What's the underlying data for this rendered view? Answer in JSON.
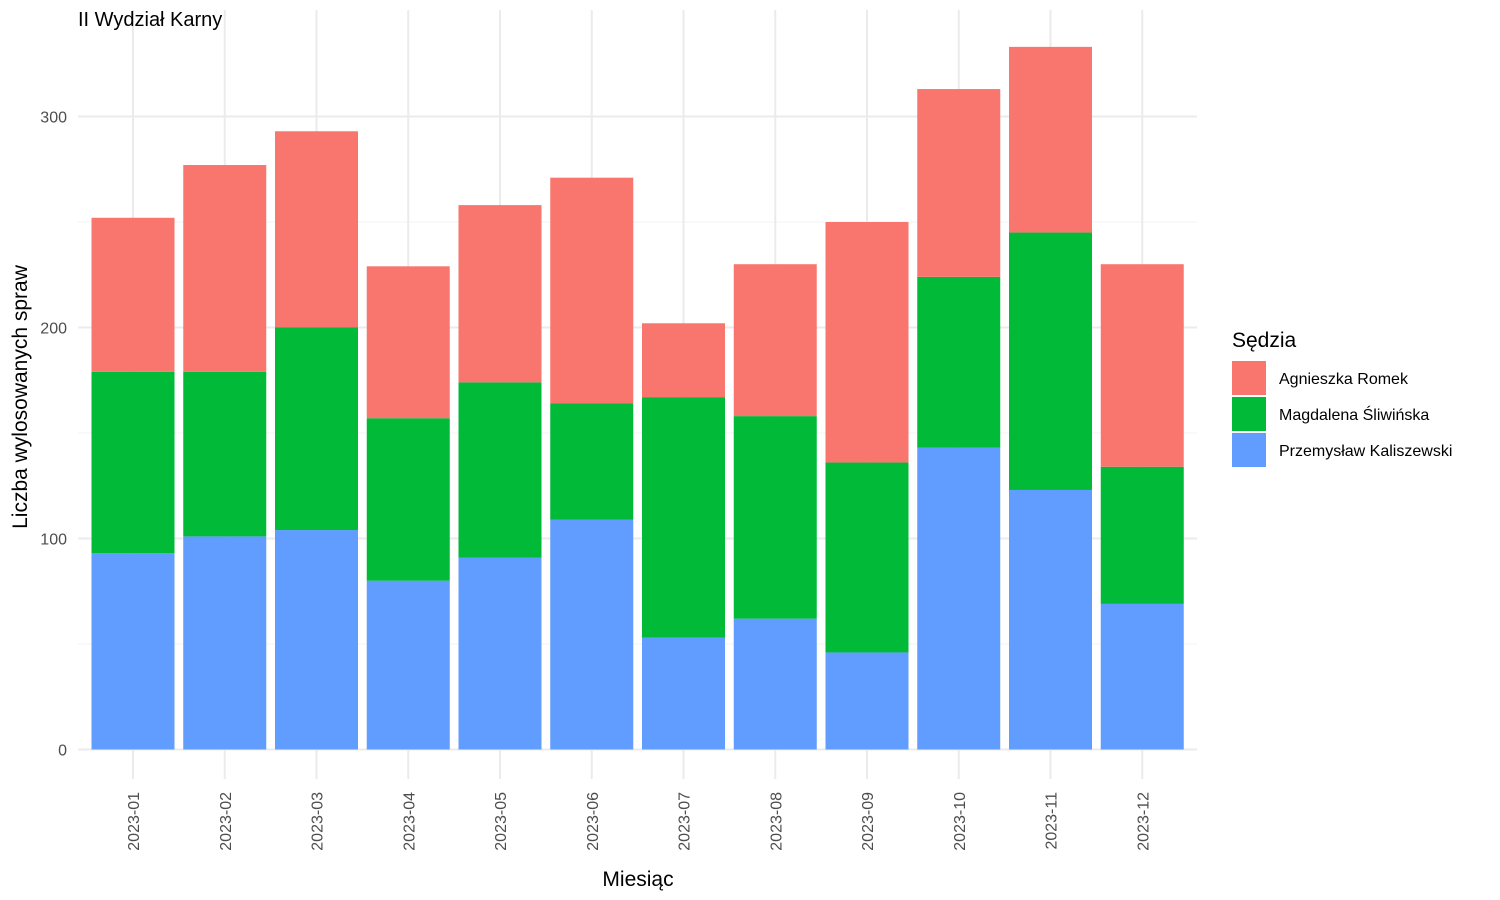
{
  "chart_data": {
    "type": "bar",
    "stacked": true,
    "title": "II Wydział Karny",
    "xlabel": "Miesiąc",
    "ylabel": "Liczba wylosowanych spraw",
    "ylim": [
      0,
      335
    ],
    "yticks": [
      0,
      100,
      200,
      300
    ],
    "grid": true,
    "legend_title": "Sędzia",
    "legend_position": "right",
    "categories": [
      "2023-01",
      "2023-02",
      "2023-03",
      "2023-04",
      "2023-05",
      "2023-06",
      "2023-07",
      "2023-08",
      "2023-09",
      "2023-10",
      "2023-11",
      "2023-12"
    ],
    "series": [
      {
        "name": "Przemysław Kaliszewski",
        "color": "#619CFF",
        "values": [
          93,
          101,
          104,
          80,
          91,
          109,
          53,
          62,
          46,
          143,
          123,
          69
        ]
      },
      {
        "name": "Magdalena Śliwińska",
        "color": "#00BA38",
        "values": [
          86,
          78,
          96,
          77,
          83,
          55,
          114,
          96,
          90,
          81,
          122,
          65
        ]
      },
      {
        "name": "Agnieszka Romek",
        "color": "#F8766D",
        "values": [
          73,
          98,
          93,
          72,
          84,
          107,
          35,
          72,
          114,
          89,
          88,
          96
        ]
      }
    ],
    "legend_order": [
      "Agnieszka Romek",
      "Magdalena Śliwińska",
      "Przemysław Kaliszewski"
    ]
  }
}
